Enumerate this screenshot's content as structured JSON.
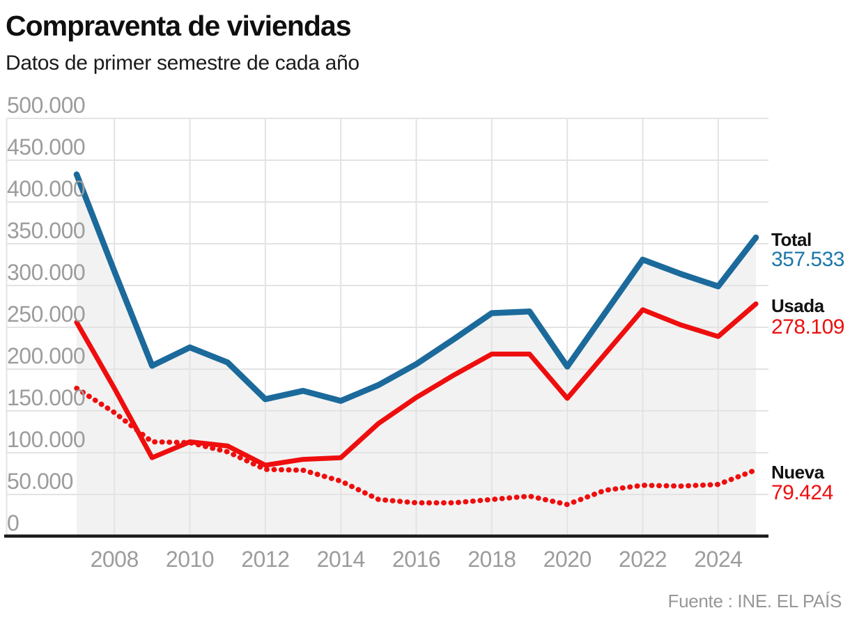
{
  "title": "Compraventa de viviendas",
  "subtitle": "Datos de primer semestre de cada año",
  "source": "Fuente : INE. EL PAÍS",
  "colors": {
    "total_line": "#1b6a9b",
    "total_value_text": "#1b76ab",
    "usada_line": "#ee0e0e",
    "nueva_line": "#ee0e0e",
    "red_value_text": "#ee0e0e",
    "legend_name_text": "#111111",
    "tick_text": "#9c9c9c",
    "grid_line": "#e3e3e3",
    "area_fill": "#f2f2f2",
    "axis_line": "#1b1b1b",
    "source_text": "#979797"
  },
  "axes": {
    "y": {
      "ticks": [
        {
          "label": "500.000",
          "value": 500000
        },
        {
          "label": "450.000",
          "value": 450000
        },
        {
          "label": "400.000",
          "value": 400000
        },
        {
          "label": "350.000",
          "value": 350000
        },
        {
          "label": "300.000",
          "value": 300000
        },
        {
          "label": "250.000",
          "value": 250000
        },
        {
          "label": "200.000",
          "value": 200000
        },
        {
          "label": "150.000",
          "value": 150000
        },
        {
          "label": "100.000",
          "value": 100000
        },
        {
          "label": "50.000",
          "value": 50000
        },
        {
          "label": "0",
          "value": 0
        }
      ]
    },
    "x": {
      "ticks": [
        {
          "label": "2008",
          "value": 2008
        },
        {
          "label": "2010",
          "value": 2010
        },
        {
          "label": "2012",
          "value": 2012
        },
        {
          "label": "2014",
          "value": 2014
        },
        {
          "label": "2016",
          "value": 2016
        },
        {
          "label": "2018",
          "value": 2018
        },
        {
          "label": "2020",
          "value": 2020
        },
        {
          "label": "2022",
          "value": 2022
        },
        {
          "label": "2024",
          "value": 2024
        }
      ]
    }
  },
  "legend": [
    {
      "name": "Total",
      "value_label": "357.533"
    },
    {
      "name": "Usada",
      "value_label": "278.109"
    },
    {
      "name": "Nueva",
      "value_label": "79.424"
    }
  ],
  "chart_data": {
    "type": "line",
    "title": "Compraventa de viviendas",
    "subtitle": "Datos de primer semestre de cada año",
    "x": [
      2007,
      2008,
      2009,
      2010,
      2011,
      2012,
      2013,
      2014,
      2015,
      2016,
      2017,
      2018,
      2019,
      2020,
      2021,
      2022,
      2023,
      2024,
      2025
    ],
    "series": [
      {
        "name": "Total",
        "style": "solid",
        "color": "#1b6a9b",
        "area_fill_under": true,
        "final_value_label": "357.533",
        "values": [
          433000,
          317000,
          204000,
          226000,
          208000,
          164000,
          174000,
          162000,
          181000,
          206000,
          236000,
          267000,
          269000,
          203000,
          267000,
          331000,
          314000,
          299000,
          357533
        ]
      },
      {
        "name": "Usada",
        "style": "solid",
        "color": "#ee0e0e",
        "final_value_label": "278.109",
        "values": [
          256000,
          177000,
          94000,
          113000,
          108000,
          85000,
          92000,
          94000,
          135000,
          166000,
          193000,
          218000,
          218000,
          165000,
          218000,
          271000,
          253000,
          239000,
          278109
        ]
      },
      {
        "name": "Nueva",
        "style": "dotted",
        "color": "#ee0e0e",
        "final_value_label": "79.424",
        "values": [
          177000,
          148000,
          113000,
          112000,
          101000,
          80000,
          79000,
          66000,
          44000,
          40000,
          40000,
          44000,
          48000,
          38000,
          55000,
          61000,
          60000,
          62000,
          79424
        ]
      }
    ],
    "ylim": [
      0,
      500000
    ],
    "xlabel": "",
    "ylabel": "",
    "grid": true,
    "legend_position": "right"
  }
}
